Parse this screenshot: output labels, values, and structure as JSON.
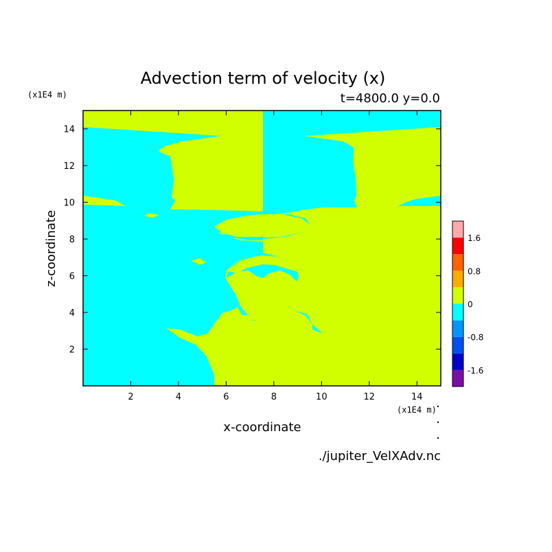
{
  "chart_data": {
    "type": "heatmap",
    "title": "Advection term of velocity (x)",
    "subtitle": "t=4800.0 y=0.0",
    "xlabel": "x-coordinate",
    "ylabel": "z-coordinate",
    "x_unit": "(x1E4 m)",
    "y_unit": "(x1E4 m)",
    "xlim": [
      0,
      15
    ],
    "ylim": [
      0,
      15
    ],
    "x_ticks": [
      2,
      4,
      6,
      8,
      10,
      12,
      14
    ],
    "y_ticks": [
      2,
      4,
      6,
      8,
      10,
      12,
      14
    ],
    "x_tick_labels": [
      "2",
      "4",
      "6",
      "8",
      "10",
      "12",
      "14"
    ],
    "y_tick_labels": [
      "2",
      "4",
      "6",
      "8",
      "10",
      "12",
      "14"
    ],
    "colorbar": {
      "levels": [
        -2.0,
        -1.6,
        -1.2,
        -0.8,
        -0.4,
        0,
        0.4,
        0.8,
        1.2,
        1.6,
        2.0
      ],
      "colors": [
        "#7a0fa8",
        "#0000c8",
        "#0050f0",
        "#0096ff",
        "#00ffff",
        "#d2ff00",
        "#ffaa00",
        "#ff6400",
        "#ff0000",
        "#ffaaaa"
      ],
      "tick_values": [
        1.6,
        0.8,
        0,
        -0.8,
        -1.6
      ],
      "tick_labels": [
        "1.6",
        "0.8",
        "0",
        "-0.8",
        "-1.6"
      ]
    },
    "regions": {
      "positive_color": "#d2ff00",
      "negative_color": "#00ffff"
    },
    "source_file": "./jupiter_VelXAdv.nc"
  }
}
